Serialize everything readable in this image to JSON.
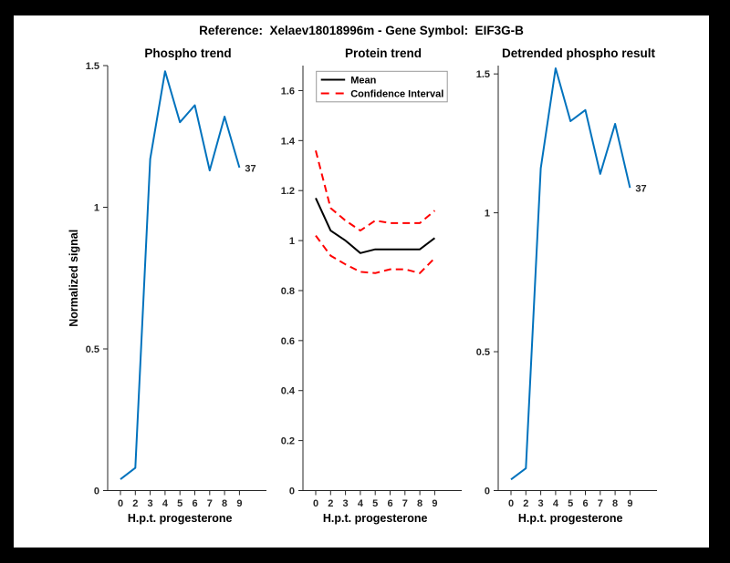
{
  "window": {
    "frame_color": "#000000",
    "canvas_color": "#ffffff"
  },
  "header": {
    "suptitle": "Reference:  Xelaev18018996m - Gene Symbol:  EIF3G-B"
  },
  "colors": {
    "blue_line": "#0072BD",
    "red_dashed": "#ff0000",
    "mean_black": "#000000",
    "axis": "#262626",
    "legend_border": "#999999"
  },
  "chart_data": [
    {
      "id": "phospho-trend",
      "type": "line",
      "title": "Phospho trend",
      "xlabel": "H.p.t. progesterone",
      "ylabel": "Normalized signal",
      "x_tick_labels": [
        "0",
        "2",
        "3",
        "4",
        "5",
        "6",
        "7",
        "8",
        "9"
      ],
      "y_ticks": [
        0,
        0.5,
        1,
        1.5
      ],
      "y_tick_labels": [
        "0",
        "0.5",
        "1",
        "1.5"
      ],
      "ylim": [
        0,
        1.5
      ],
      "grid": false,
      "legend": null,
      "series": [
        {
          "name": "phospho-signal",
          "color": "#0072BD",
          "style": "solid",
          "values": [
            0.04,
            0.08,
            1.17,
            1.48,
            1.3,
            1.36,
            1.13,
            1.32,
            1.14
          ]
        }
      ],
      "end_annotation": "37"
    },
    {
      "id": "protein-trend",
      "type": "line",
      "title": "Protein trend",
      "xlabel": "H.p.t. progesterone",
      "ylabel": "",
      "x_tick_labels": [
        "0",
        "2",
        "3",
        "4",
        "5",
        "6",
        "7",
        "8",
        "9"
      ],
      "y_ticks": [
        0,
        0.2,
        0.4,
        0.6,
        0.8,
        1.0,
        1.2,
        1.4,
        1.6
      ],
      "y_tick_labels": [
        "0",
        "0.2",
        "0.4",
        "0.6",
        "0.8",
        "1",
        "1.2",
        "1.4",
        "1.6"
      ],
      "ylim": [
        0,
        1.7
      ],
      "grid": false,
      "legend": {
        "position": "northwest",
        "entries": [
          {
            "label": "Mean",
            "color": "#000000",
            "style": "solid"
          },
          {
            "label": "Confidence Interval",
            "color": "#ff0000",
            "style": "dashed"
          }
        ]
      },
      "series": [
        {
          "name": "ci-upper",
          "color": "#ff0000",
          "style": "dashed",
          "values": [
            1.36,
            1.13,
            1.08,
            1.04,
            1.08,
            1.07,
            1.07,
            1.07,
            1.12
          ]
        },
        {
          "name": "ci-lower",
          "color": "#ff0000",
          "style": "dashed",
          "values": [
            1.02,
            0.94,
            0.905,
            0.875,
            0.87,
            0.885,
            0.885,
            0.87,
            0.93
          ]
        },
        {
          "name": "mean",
          "color": "#000000",
          "style": "solid",
          "values": [
            1.17,
            1.04,
            1.0,
            0.95,
            0.965,
            0.965,
            0.965,
            0.965,
            1.01
          ]
        }
      ],
      "end_annotation": null
    },
    {
      "id": "detrended-phospho-result",
      "type": "line",
      "title": "Detrended phospho result",
      "xlabel": "H.p.t. progesterone",
      "ylabel": "",
      "x_tick_labels": [
        "0",
        "2",
        "3",
        "4",
        "5",
        "6",
        "7",
        "8",
        "9"
      ],
      "y_ticks": [
        0,
        0.5,
        1,
        1.5
      ],
      "y_tick_labels": [
        "0",
        "0.5",
        "1",
        "1.5"
      ],
      "ylim": [
        0,
        1.53
      ],
      "grid": false,
      "legend": null,
      "series": [
        {
          "name": "detrended-phospho-signal",
          "color": "#0072BD",
          "style": "solid",
          "values": [
            0.04,
            0.08,
            1.16,
            1.52,
            1.33,
            1.37,
            1.14,
            1.32,
            1.09
          ]
        }
      ],
      "end_annotation": "37"
    }
  ]
}
